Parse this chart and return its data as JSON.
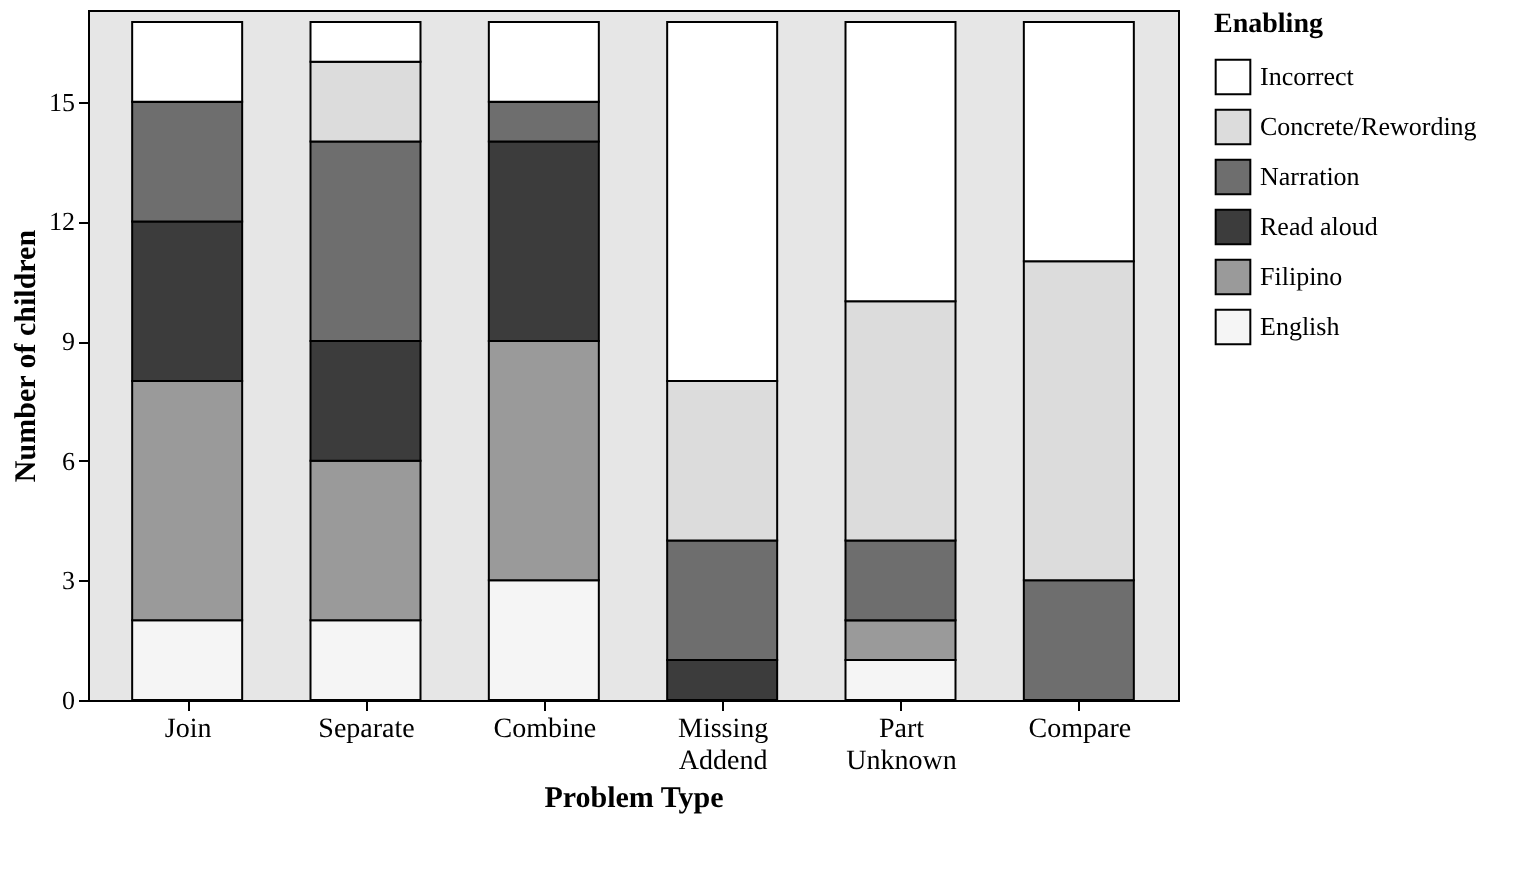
{
  "chart_data": {
    "type": "bar",
    "stacked": true,
    "xlabel": "Problem Type",
    "ylabel": "Number of children",
    "legend_title": "Enabling",
    "legend": "right",
    "grid": false,
    "categories": [
      "Join",
      "Separate",
      "Combine",
      "Missing Addend",
      "Part Unknown",
      "Compare"
    ],
    "ylim": [
      0,
      17.3
    ],
    "yticks": [
      0,
      3,
      6,
      9,
      12,
      15
    ],
    "series": [
      {
        "name": "English",
        "color": "#f5f5f5",
        "values": [
          2,
          2,
          3,
          0,
          1,
          0
        ]
      },
      {
        "name": "Filipino",
        "color": "#9a9a9a",
        "values": [
          6,
          4,
          6,
          0,
          1,
          0
        ]
      },
      {
        "name": "Read aloud",
        "color": "#3c3c3c",
        "values": [
          4,
          3,
          5,
          1,
          0,
          0
        ]
      },
      {
        "name": "Narration",
        "color": "#6e6e6e",
        "values": [
          3,
          5,
          1,
          3,
          2,
          3
        ]
      },
      {
        "name": "Concrete/Rewording",
        "color": "#dcdcdc",
        "values": [
          0,
          2,
          0,
          4,
          6,
          8
        ]
      },
      {
        "name": "Incorrect",
        "color": "#ffffff",
        "values": [
          2,
          1,
          2,
          9,
          7,
          6
        ]
      }
    ]
  }
}
